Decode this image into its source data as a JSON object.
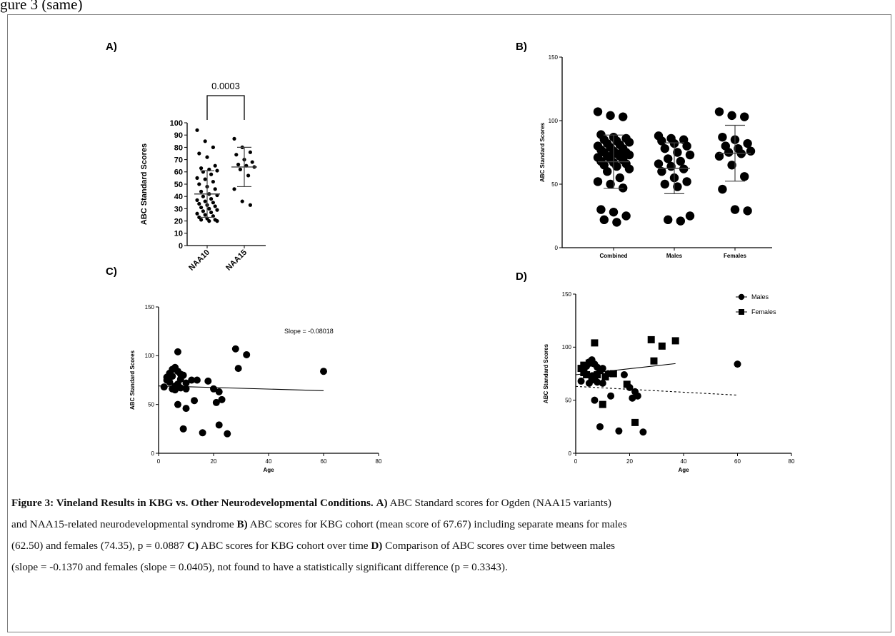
{
  "page": {
    "top_text": "gure 3 (same)"
  },
  "chart_data": [
    {
      "id": "A",
      "type": "scatter",
      "panel_label": "A)",
      "ylabel": "ABC Standard Scores",
      "categories": [
        "NAA10",
        "NAA15"
      ],
      "y_ticks": [
        "0",
        "10",
        "20",
        "30",
        "40",
        "50",
        "60",
        "70",
        "80",
        "90",
        "100"
      ],
      "ylim": [
        0,
        100
      ],
      "comparison_label": "0.0003",
      "series": [
        {
          "values": [
            94,
            85,
            80,
            75,
            72,
            65,
            63,
            62,
            61,
            60,
            58,
            55,
            54,
            52,
            50,
            48,
            46,
            44,
            42,
            41,
            40,
            38,
            37,
            36,
            35,
            34,
            33,
            32,
            31,
            30,
            29,
            28,
            27,
            26,
            25,
            24,
            23,
            22,
            21,
            21,
            20,
            20
          ],
          "mean": 42,
          "sd": 19
        },
        {
          "values": [
            87,
            80,
            76,
            74,
            70,
            68,
            66,
            65,
            64,
            62,
            57,
            46,
            36,
            33
          ],
          "mean": 64,
          "sd": 16
        }
      ]
    },
    {
      "id": "B",
      "type": "scatter",
      "panel_label": "B)",
      "ylabel": "ABC Standard Scores",
      "categories": [
        "Combined",
        "Males",
        "Females"
      ],
      "y_ticks": [
        "0",
        "50",
        "100",
        "150"
      ],
      "ylim": [
        0,
        150
      ],
      "series": [
        {
          "values": [
            107,
            104,
            103,
            89,
            87,
            86,
            85,
            84,
            83,
            82,
            81,
            80,
            79,
            78,
            77,
            76,
            75,
            75,
            74,
            73,
            72,
            72,
            71,
            70,
            69,
            68,
            67,
            66,
            65,
            64,
            62,
            60,
            55,
            52,
            50,
            47,
            30,
            28,
            25,
            22,
            20
          ],
          "mean": 67.67,
          "sd": 21
        },
        {
          "values": [
            88,
            86,
            85,
            84,
            82,
            80,
            78,
            75,
            73,
            70,
            68,
            66,
            64,
            62,
            60,
            55,
            52,
            50,
            48,
            25,
            22,
            21
          ],
          "mean": 62.5,
          "sd": 20
        },
        {
          "values": [
            107,
            104,
            103,
            87,
            85,
            82,
            80,
            78,
            76,
            75,
            74,
            72,
            65,
            56,
            46,
            30,
            29
          ],
          "mean": 74.35,
          "sd": 22
        }
      ]
    },
    {
      "id": "C",
      "type": "scatter",
      "panel_label": "C)",
      "xlabel": "Age",
      "ylabel": "ABC Standard Scores",
      "x_ticks": [
        "0",
        "20",
        "40",
        "60",
        "80"
      ],
      "y_ticks": [
        "0",
        "50",
        "100",
        "150"
      ],
      "xlim": [
        0,
        80
      ],
      "ylim": [
        0,
        150
      ],
      "annotation": "Slope = -0.08018",
      "points": [
        [
          2,
          68
        ],
        [
          3,
          78
        ],
        [
          3,
          75
        ],
        [
          4,
          82
        ],
        [
          4,
          73
        ],
        [
          5,
          86
        ],
        [
          5,
          66
        ],
        [
          5,
          79
        ],
        [
          6,
          88
        ],
        [
          6,
          69
        ],
        [
          6,
          65
        ],
        [
          7,
          104
        ],
        [
          7,
          84
        ],
        [
          7,
          71
        ],
        [
          7,
          50
        ],
        [
          8,
          81
        ],
        [
          8,
          67
        ],
        [
          8,
          76
        ],
        [
          9,
          25
        ],
        [
          9,
          80
        ],
        [
          10,
          46
        ],
        [
          10,
          72
        ],
        [
          10,
          66
        ],
        [
          12,
          75
        ],
        [
          13,
          54
        ],
        [
          14,
          75
        ],
        [
          16,
          21
        ],
        [
          18,
          74
        ],
        [
          20,
          66
        ],
        [
          21,
          52
        ],
        [
          22,
          63
        ],
        [
          22,
          29
        ],
        [
          23,
          55
        ],
        [
          25,
          20
        ],
        [
          28,
          107
        ],
        [
          29,
          87
        ],
        [
          32,
          101
        ],
        [
          60,
          84
        ]
      ],
      "fit": {
        "slope": -0.08018,
        "intercept": 69
      }
    },
    {
      "id": "D",
      "type": "scatter",
      "panel_label": "D)",
      "xlabel": "Age",
      "ylabel": "ABC Standard Scores",
      "x_ticks": [
        "0",
        "20",
        "40",
        "60",
        "80"
      ],
      "y_ticks": [
        "0",
        "50",
        "100",
        "150"
      ],
      "xlim": [
        0,
        80
      ],
      "ylim": [
        0,
        150
      ],
      "legend": [
        "Males",
        "Females"
      ],
      "series": [
        {
          "name": "Males",
          "marker": "circle",
          "line": "dashed",
          "points": [
            [
              2,
              68
            ],
            [
              3,
              78
            ],
            [
              4,
              82
            ],
            [
              5,
              86
            ],
            [
              5,
              66
            ],
            [
              6,
              88
            ],
            [
              6,
              69
            ],
            [
              7,
              84
            ],
            [
              7,
              50
            ],
            [
              8,
              81
            ],
            [
              8,
              67
            ],
            [
              9,
              25
            ],
            [
              10,
              80
            ],
            [
              10,
              66
            ],
            [
              12,
              75
            ],
            [
              13,
              54
            ],
            [
              16,
              21
            ],
            [
              18,
              74
            ],
            [
              20,
              62
            ],
            [
              21,
              52
            ],
            [
              22,
              58
            ],
            [
              23,
              54
            ],
            [
              25,
              20
            ],
            [
              60,
              84
            ]
          ],
          "fit": {
            "slope": -0.137,
            "intercept": 63
          }
        },
        {
          "name": "Females",
          "marker": "square",
          "line": "solid",
          "points": [
            [
              2,
              80
            ],
            [
              3,
              83
            ],
            [
              3,
              76
            ],
            [
              4,
              74
            ],
            [
              5,
              85
            ],
            [
              6,
              72
            ],
            [
              7,
              104
            ],
            [
              7,
              73
            ],
            [
              8,
              74
            ],
            [
              9,
              78
            ],
            [
              10,
              46
            ],
            [
              11,
              72
            ],
            [
              14,
              75
            ],
            [
              19,
              65
            ],
            [
              22,
              29
            ],
            [
              28,
              107
            ],
            [
              29,
              87
            ],
            [
              32,
              101
            ],
            [
              37,
              106
            ]
          ],
          "fit": {
            "slope": 0.0405,
            "intercept": 74
          }
        }
      ]
    }
  ],
  "caption": {
    "line1_bold": "Figure 3: Vineland Results in KBG vs. Other Neurodevelopmental Conditions.",
    "line1_rest_a": " ABC Standard scores for Ogden (NAA15 variants)",
    "bold_a": "A)",
    "line2_a": "and NAA15-related neurodevelopmental syndrome ",
    "bold_b": "B)",
    "line2_b": " ABC scores for KBG cohort (mean score of 67.67) including separate means for males",
    "line3_a": "(62.50) and females (74.35), p = 0.0887 ",
    "bold_c": "C)",
    "line3_b": " ABC scores for KBG cohort over time ",
    "bold_d": "D)",
    "line3_c": " Comparison of ABC scores over time between males",
    "line4": "(slope = -0.1370 and females (slope = 0.0405), not found to have a statistically significant difference (p = 0.3343)."
  }
}
